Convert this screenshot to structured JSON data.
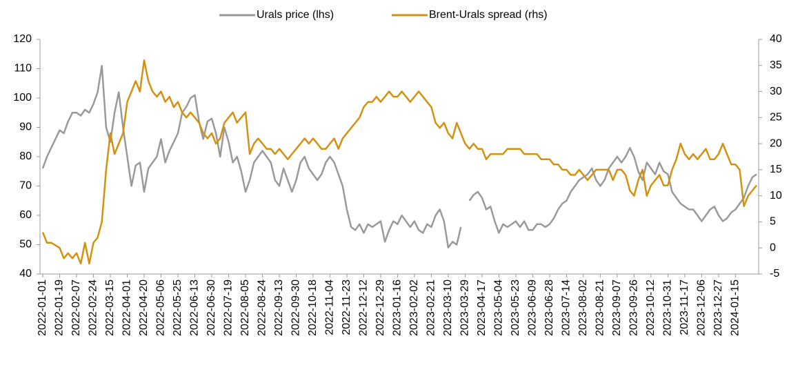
{
  "chart_data": {
    "type": "line",
    "categories": [
      "2022-01-01",
      null,
      null,
      null,
      "2022-01-19",
      null,
      null,
      null,
      "2022-02-07",
      null,
      null,
      null,
      "2022-02-24",
      null,
      null,
      null,
      "2022-03-15",
      null,
      null,
      null,
      "2022-04-01",
      null,
      null,
      null,
      "2022-04-20",
      null,
      null,
      null,
      "2022-05-06",
      null,
      null,
      null,
      "2022-05-25",
      null,
      null,
      null,
      "2022-06-13",
      null,
      null,
      null,
      "2022-06-30",
      null,
      null,
      null,
      "2022-07-19",
      null,
      null,
      null,
      "2022-08-05",
      null,
      null,
      null,
      "2022-08-24",
      null,
      null,
      null,
      "2022-09-13",
      null,
      null,
      null,
      "2022-09-30",
      null,
      null,
      null,
      "2022-10-18",
      null,
      null,
      null,
      "2022-11-04",
      null,
      null,
      null,
      "2022-11-23",
      null,
      null,
      null,
      "2022-12-12",
      null,
      null,
      null,
      "2022-12-29",
      null,
      null,
      null,
      "2023-01-16",
      null,
      null,
      null,
      "2023-02-02",
      null,
      null,
      null,
      "2023-02-21",
      null,
      null,
      null,
      "2023-03-10",
      null,
      null,
      null,
      "2023-03-29",
      null,
      null,
      null,
      "2023-04-17",
      null,
      null,
      null,
      "2023-05-04",
      null,
      null,
      null,
      "2023-05-23",
      null,
      null,
      null,
      "2023-06-09",
      null,
      null,
      null,
      "2023-06-28",
      null,
      null,
      null,
      "2023-07-14",
      null,
      null,
      null,
      "2023-08-02",
      null,
      null,
      null,
      "2023-08-21",
      null,
      null,
      null,
      "2023-09-07",
      null,
      null,
      null,
      "2023-09-26",
      null,
      null,
      null,
      "2023-10-12",
      null,
      null,
      null,
      "2023-10-31",
      null,
      null,
      null,
      "2023-11-17",
      null,
      null,
      null,
      "2023-12-06",
      null,
      null,
      null,
      "2023-12-27",
      null,
      null,
      null,
      "2024-01-15",
      null,
      null,
      null,
      null,
      null
    ],
    "series": [
      {
        "name": "Urals price (lhs)",
        "color": "#999999",
        "axis": "y",
        "values": [
          76,
          80,
          83,
          86,
          89,
          88,
          92,
          95,
          95,
          94,
          96,
          95,
          98,
          102,
          111,
          90,
          85,
          95,
          102,
          90,
          80,
          70,
          77,
          78,
          68,
          76,
          78,
          80,
          86,
          78,
          82,
          85,
          88,
          95,
          97,
          100,
          101,
          92,
          86,
          92,
          93,
          88,
          80,
          90,
          85,
          78,
          80,
          75,
          68,
          72,
          78,
          80,
          82,
          80,
          78,
          72,
          70,
          76,
          72,
          68,
          72,
          78,
          80,
          76,
          74,
          72,
          74,
          78,
          80,
          78,
          74,
          70,
          62,
          56,
          55,
          57,
          54,
          57,
          56,
          57,
          58,
          51,
          55,
          58,
          57,
          60,
          58,
          56,
          58,
          55,
          54,
          57,
          56,
          60,
          62,
          58,
          49,
          51,
          50,
          56,
          null,
          65,
          67,
          68,
          66,
          62,
          63,
          58,
          54,
          57,
          56,
          57,
          58,
          56,
          58,
          55,
          55,
          57,
          57,
          56,
          57,
          59,
          62,
          64,
          65,
          68,
          70,
          72,
          73,
          74,
          76,
          72,
          70,
          72,
          76,
          78,
          80,
          78,
          80,
          83,
          80,
          75,
          72,
          78,
          76,
          74,
          78,
          75,
          74,
          68,
          66,
          64,
          63,
          62,
          62,
          60,
          58,
          60,
          62,
          63,
          60,
          58,
          59,
          61,
          62,
          64,
          66,
          70,
          73,
          74
        ]
      },
      {
        "name": "Brent-Urals spread (rhs)",
        "color": "#d4900f",
        "axis": "y2",
        "values": [
          3,
          1,
          1,
          0.5,
          0,
          -2,
          -1,
          -2,
          -1,
          -3,
          1,
          -3,
          1,
          2,
          5,
          15,
          22,
          18,
          20,
          22,
          28,
          30,
          32,
          30,
          36,
          32,
          30,
          29,
          30,
          28,
          29,
          27,
          28,
          26,
          25,
          26,
          25,
          24,
          22,
          21,
          22,
          20,
          21,
          24,
          25,
          26,
          24,
          25,
          26,
          18,
          20,
          21,
          20,
          19,
          19,
          18,
          19,
          18,
          17,
          18,
          19,
          20,
          21,
          20,
          21,
          20,
          19,
          19,
          20,
          21,
          19,
          21,
          22,
          23,
          24,
          25,
          27,
          28,
          28,
          29,
          28,
          29,
          30,
          29,
          29,
          30,
          29,
          28,
          29,
          30,
          29,
          28,
          27,
          24,
          23,
          24,
          22,
          21,
          24,
          22,
          20,
          19,
          20,
          19,
          19,
          17,
          18,
          18,
          18,
          18,
          19,
          19,
          19,
          19,
          18,
          18,
          18,
          18,
          17,
          17,
          17,
          16,
          16,
          15,
          15,
          14,
          14,
          15,
          14,
          13,
          14,
          15,
          15,
          15,
          15,
          13,
          15,
          15,
          14,
          11,
          10,
          13,
          15,
          10,
          12,
          13,
          14,
          12,
          12,
          15,
          17,
          20,
          18,
          17,
          18,
          17,
          18,
          19,
          17,
          17,
          18,
          20,
          18,
          16,
          16,
          15,
          8,
          10,
          11,
          12
        ]
      }
    ],
    "ylim": [
      40,
      120
    ],
    "yticks": [
      40,
      50,
      60,
      70,
      80,
      90,
      100,
      110,
      120
    ],
    "y2lim": [
      -5,
      40
    ],
    "y2ticks": [
      -5,
      0,
      5,
      10,
      15,
      20,
      25,
      30,
      35,
      40
    ],
    "legend": "top"
  }
}
